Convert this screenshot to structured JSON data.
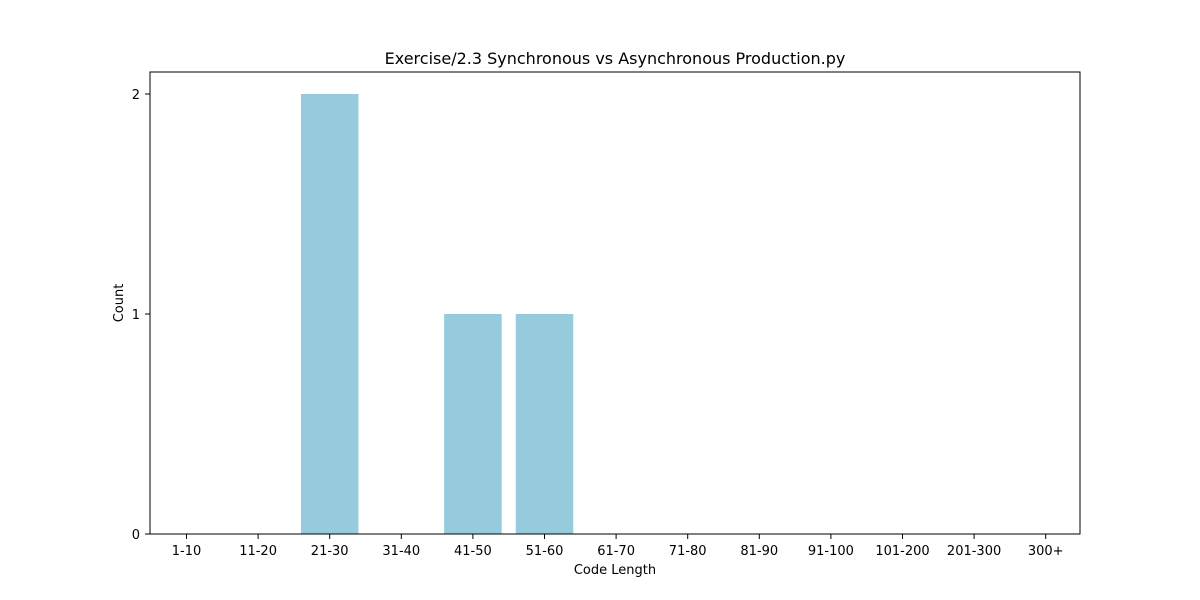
{
  "chart_data": {
    "type": "bar",
    "title": "Exercise/2.3 Synchronous vs Asynchronous Production.py",
    "xlabel": "Code Length",
    "ylabel": "Count",
    "categories": [
      "1-10",
      "11-20",
      "21-30",
      "31-40",
      "41-50",
      "51-60",
      "61-70",
      "71-80",
      "81-90",
      "91-100",
      "101-200",
      "201-300",
      "300+"
    ],
    "values": [
      0,
      0,
      2,
      0,
      1,
      1,
      0,
      0,
      0,
      0,
      0,
      0,
      0
    ],
    "ylim": [
      0,
      2.1
    ],
    "yticks": [
      0,
      1,
      2
    ],
    "grid": false,
    "bar_color": "#96cadd"
  }
}
